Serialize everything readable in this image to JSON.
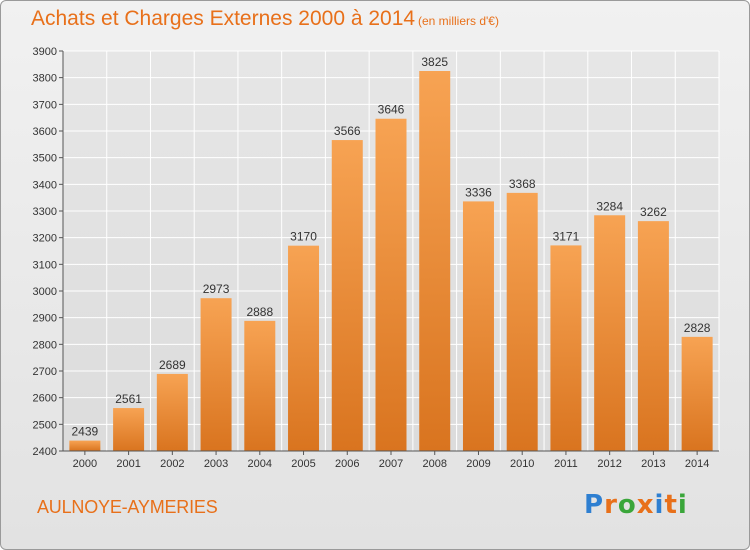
{
  "header": {
    "title": "Achats et Charges Externes 2000 à 2014",
    "unit": "(en milliers d'€)"
  },
  "footer": {
    "town": "AULNOYE-AYMERIES",
    "brand": "Proxiti"
  },
  "colors": {
    "accent": "#e8701a",
    "bar_top": "#f7a353",
    "bar_bottom": "#d9741f",
    "grid": "#ffffff",
    "axis": "#555555",
    "logo_letters": [
      "#2e7fd1",
      "#e8701a",
      "#3aa63a",
      "#e8701a",
      "#2e7fd1",
      "#e8701a",
      "#3aa63a"
    ]
  },
  "chart_data": {
    "type": "bar",
    "title": "Achats et Charges Externes 2000 à 2014",
    "subtitle": "(en milliers d'€)",
    "categories": [
      "2000",
      "2001",
      "2002",
      "2003",
      "2004",
      "2005",
      "2006",
      "2007",
      "2008",
      "2009",
      "2010",
      "2011",
      "2012",
      "2013",
      "2014"
    ],
    "values": [
      2439,
      2561,
      2689,
      2973,
      2888,
      3170,
      3566,
      3646,
      3825,
      3336,
      3368,
      3171,
      3284,
      3262,
      2828
    ],
    "ylim": [
      2400,
      3900
    ],
    "yticks": [
      2400,
      2500,
      2600,
      2700,
      2800,
      2900,
      3000,
      3100,
      3200,
      3300,
      3400,
      3500,
      3600,
      3700,
      3800,
      3900
    ],
    "grid": true,
    "legend": "none",
    "xlabel": "",
    "ylabel": ""
  }
}
